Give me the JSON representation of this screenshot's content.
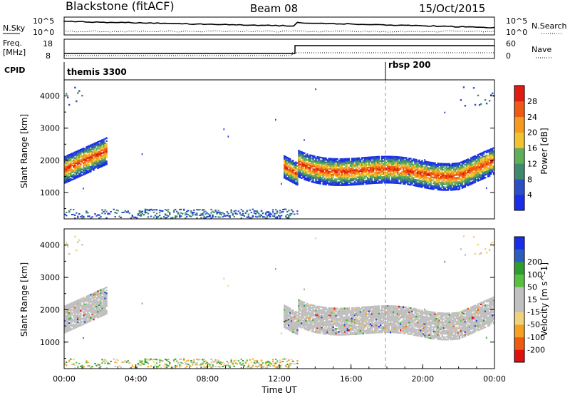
{
  "header": {
    "station": "Blackstone (fitACF)",
    "beam": "Beam 08",
    "date": "15/Oct/2015"
  },
  "strip_panels": {
    "nsky": {
      "label": "N.Sky",
      "ticks": [
        "10^5",
        "10^0"
      ],
      "right_label": "N.Search",
      "right_ticks": [
        "10^5",
        "10^0"
      ]
    },
    "freq": {
      "label_lines": [
        "Freq.",
        "[MHz]"
      ],
      "ticks": [
        "18",
        "8"
      ],
      "right_label": "Nave",
      "right_ticks": [
        "60",
        "0"
      ]
    },
    "cpid": {
      "label": "CPID",
      "programs": [
        {
          "name": "themis 3300",
          "start_hour": 0.0
        },
        {
          "name": "rbsp 200",
          "start_hour": 18.0
        }
      ]
    }
  },
  "colors": {
    "power_scale": [
      "#1a2ee8",
      "#2b4fc7",
      "#3f8a6e",
      "#5fae5a",
      "#f2c230",
      "#f59a1e",
      "#ee5a14",
      "#e01b10"
    ],
    "velocity_scale": [
      "#e01010",
      "#ef5a10",
      "#f5a020",
      "#f0d27a",
      "#c0c0c0",
      "#c0c0c0",
      "#58c040",
      "#2e9c2e",
      "#2c5cc0",
      "#1a2ee8"
    ],
    "mean_line": "#000000"
  },
  "chart_data": [
    {
      "type": "heatmap",
      "panel": "power",
      "ylabel": "Slant Range [km]",
      "xlabel": "",
      "ylim": [
        180,
        4500
      ],
      "xlim_hours": [
        0,
        24
      ],
      "yticks": [
        "1000",
        "2000",
        "3000",
        "4000"
      ],
      "colorbar": {
        "label": "Power [dB]",
        "ticks": [
          "4",
          "8",
          "12",
          "16",
          "20",
          "24",
          "28"
        ],
        "range": [
          0,
          32
        ]
      },
      "echo_bands": [
        {
          "t_start": 0.0,
          "t_end": 2.4,
          "range_start_km": 1500,
          "range_end_km": 2500,
          "peak_db": 28
        },
        {
          "t_start": 12.2,
          "t_end": 13.0,
          "range_start_km": 1500,
          "range_end_km": 2300,
          "peak_db": 20
        },
        {
          "t_start": 13.0,
          "t_end": 24.0,
          "range_start_km": 1500,
          "range_end_km": 2200,
          "peak_db": 28
        },
        {
          "t_start": 0.0,
          "t_end": 13.0,
          "range_start_km": 200,
          "range_end_km": 500,
          "peak_db": 12
        }
      ]
    },
    {
      "type": "heatmap",
      "panel": "velocity",
      "ylabel": "Slant Range [km]",
      "xlabel": "Time UT",
      "ylim": [
        180,
        4500
      ],
      "xlim_hours": [
        0,
        24
      ],
      "yticks": [
        "1000",
        "2000",
        "3000",
        "4000"
      ],
      "xticks": [
        "00:00",
        "04:00",
        "08:00",
        "12:00",
        "16:00",
        "20:00",
        "00:00"
      ],
      "colorbar": {
        "label": "Velocity [m s^-1]",
        "ticks": [
          "200",
          "100",
          "50",
          "15",
          "-15",
          "-50",
          "-100",
          "-200"
        ],
        "range": [
          -250,
          250
        ]
      }
    }
  ]
}
